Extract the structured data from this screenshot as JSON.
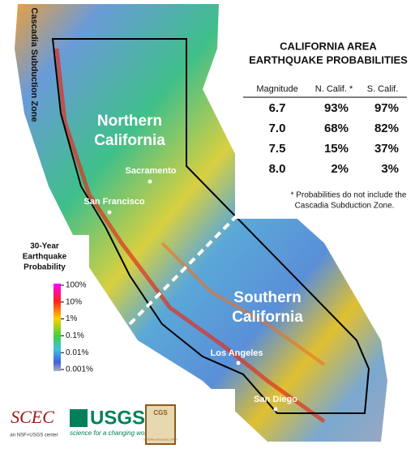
{
  "title": [
    "CALIFORNIA AREA",
    "EARTHQUAKE PROBABILITIES"
  ],
  "table": {
    "header": [
      "Magnitude",
      "N. Calif. *",
      "S. Calif."
    ],
    "rows": [
      [
        "6.7",
        "93%",
        "97%"
      ],
      [
        "7.0",
        "68%",
        "82%"
      ],
      [
        "7.5",
        "15%",
        "37%"
      ],
      [
        "8.0",
        "2%",
        "3%"
      ]
    ]
  },
  "footnote": [
    "* Probabilities do not include the",
    "Cascadia Subduction Zone."
  ],
  "regions": {
    "north": [
      "Northern",
      "California"
    ],
    "south": [
      "Southern",
      "California"
    ],
    "cascadia": "Cascadia Subduction Zone"
  },
  "cities": [
    "Sacramento",
    "San Francisco",
    "Los Angeles",
    "San Diego"
  ],
  "legend": {
    "title": [
      "30-Year",
      "Earthquake",
      "Probability"
    ],
    "ticks": [
      "100%",
      "10%",
      "1%",
      "0.1%",
      "0.01%",
      "0.001%"
    ]
  },
  "logos": {
    "scec": "SCEC",
    "scec_sub": "an NSF+USGS center",
    "usgs": "USGS",
    "usgs_sub": "science for a changing world",
    "cgs": "CGS",
    "cgs_sub": "CALIFORNIA GEOLOGICAL SURVEY"
  }
}
